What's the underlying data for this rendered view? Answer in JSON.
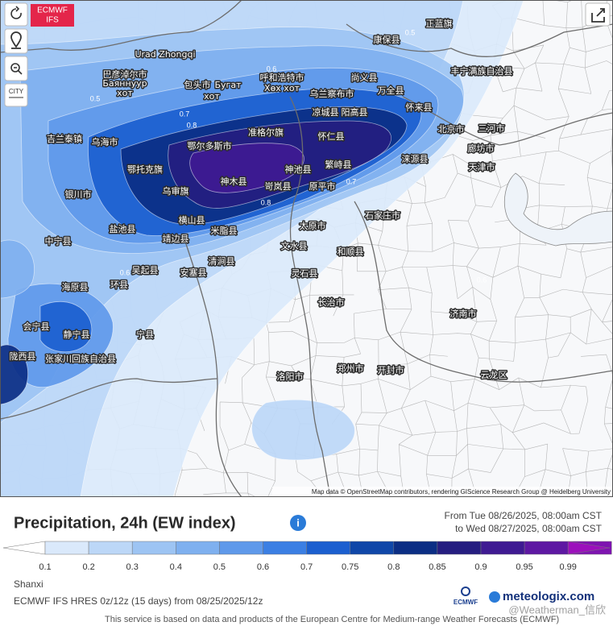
{
  "toolbar": {
    "city_button": "CITY"
  },
  "badge": {
    "line1": "ECMWF",
    "line2": "IFS"
  },
  "map": {
    "place_labels": [
      "正蓝旗",
      "康保县",
      "丰宁满族自治县",
      "Urad Zhongqi",
      "巴彦淖尔市",
      "Баяннуур",
      "хот",
      "包头市",
      "Бугат",
      "хот",
      "呼和浩特市",
      "Хөх хот",
      "乌兰察布市",
      "尚义县",
      "万全县",
      "怀来县",
      "北京市",
      "三河市",
      "廊坊市",
      "天津市",
      "凉城县",
      "阳高县",
      "准格尔旗",
      "怀仁县",
      "鄂尔多斯市",
      "乌海市",
      "吉兰泰镇",
      "鄂托克旗",
      "神木县",
      "神池县",
      "繁峙县",
      "涞源县",
      "岢岚县",
      "原平市",
      "乌审旗",
      "银川市",
      "横山县",
      "米脂县",
      "靖边县",
      "盐池县",
      "中宁县",
      "石家庄市",
      "太原市",
      "文水县",
      "和顺县",
      "吴起县",
      "安塞县",
      "清涧县",
      "灵石县",
      "环县",
      "海原县",
      "长治市",
      "济南市",
      "会宁县",
      "静宁县",
      "陇西县",
      "张家川回族自治县",
      "宁县",
      "洛阳市",
      "郑州市",
      "开封市",
      "云龙区"
    ],
    "contour_labels": [
      "0.5",
      "0.6",
      "0.7",
      "0.8",
      "0.5",
      "0.6",
      "0.7",
      "0.8",
      "0.6"
    ],
    "attribution": "Map data © OpenStreetMap contributors, rendering GIScience Research Group @ Heidelberg University"
  },
  "panel": {
    "title": "Precipitation, 24h (EW index)",
    "period_from": "From Tue 08/26/2025, 08:00am CST",
    "period_to": "to Wed 08/27/2025, 08:00am CST",
    "legend": {
      "labels": [
        "0.1",
        "0.2",
        "0.3",
        "0.4",
        "0.5",
        "0.6",
        "0.7",
        "0.75",
        "0.8",
        "0.85",
        "0.9",
        "0.95",
        "0.99"
      ],
      "colors": [
        "#ffffff",
        "#dae9fb",
        "#bcd7f7",
        "#9dc4f3",
        "#7fb0ef",
        "#5f99ea",
        "#3b7fe3",
        "#1b5fcf",
        "#0f47a8",
        "#0b2e84",
        "#251d80",
        "#3f1a92",
        "#5e18a2",
        "#7e14b0",
        "#9c10bc"
      ]
    },
    "region": "Shanxi",
    "model_run": "ECMWF IFS HRES 0z/12z (15 days) from 08/25/2025/12z",
    "logo_org": "ECMWF",
    "logo": "meteologix.com",
    "watermark": "@Weatherman_信欣",
    "footer": "This service is based on data and products of the European Centre for Medium-range Weather Forecasts (ECMWF)"
  }
}
